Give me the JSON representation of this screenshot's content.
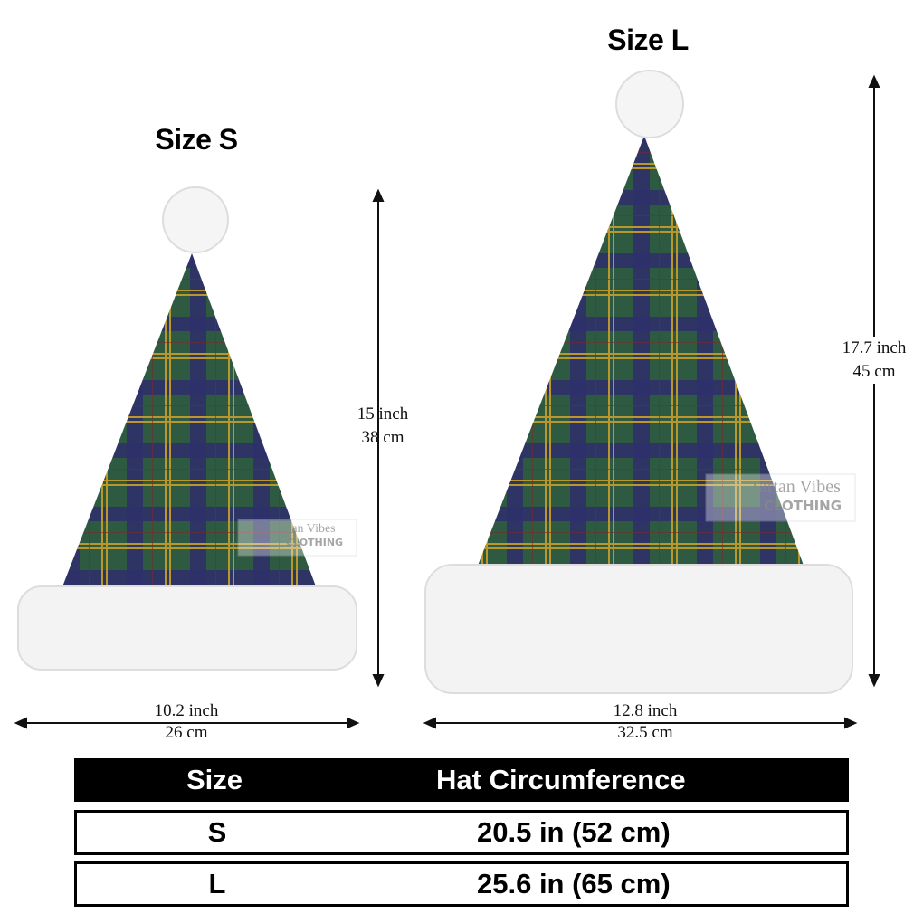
{
  "sizes": {
    "small": {
      "title": "Size S",
      "height_in": "15 inch",
      "height_cm": "38 cm",
      "width_in": "10.2 inch",
      "width_cm": "26 cm"
    },
    "large": {
      "title": "Size L",
      "height_in": "17.7 inch",
      "height_cm": "45 cm",
      "width_in": "12.8 inch",
      "width_cm": "32.5 cm"
    }
  },
  "watermark": {
    "line1": "Tartan Vibes",
    "line2": "CLOTHING"
  },
  "table": {
    "headers": [
      "Size",
      "Hat Circumference"
    ],
    "rows": [
      {
        "size": "S",
        "circumference": "20.5 in (52 cm)"
      },
      {
        "size": "L",
        "circumference": "25.6 in (65 cm)"
      }
    ]
  },
  "colors": {
    "tartan_green": "#2f5a42",
    "tartan_navy": "#2e2f6b",
    "tartan_gold": "#b8982c",
    "fur": "#f4f4f4"
  }
}
